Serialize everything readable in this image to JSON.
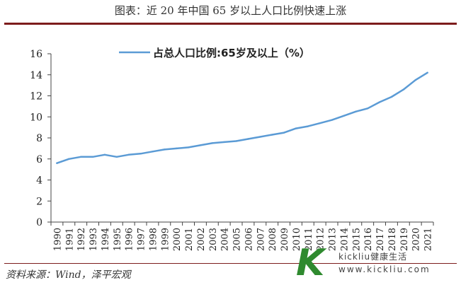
{
  "figure": {
    "title": "图表：近 20 年中国 65 岁以上人口比例快速上涨",
    "source": "资料来源：Wind，泽平宏观"
  },
  "watermark": {
    "logo_letter": "K",
    "brand_line": "kickliu健康生活",
    "url": "www.kickliu.com"
  },
  "colors": {
    "line": "#5b9bd5",
    "axis": "#444444",
    "title_rule": "#7d1c1c"
  },
  "chart_data": {
    "type": "line",
    "title": "",
    "xlabel": "",
    "ylabel": "",
    "ylim": [
      0,
      16
    ],
    "yticks": [
      "0",
      "2",
      "4",
      "6",
      "8",
      "10",
      "12",
      "14",
      "16"
    ],
    "grid": false,
    "legend_position": "top-center",
    "x": [
      "1990",
      "1991",
      "1992",
      "1993",
      "1994",
      "1995",
      "1996",
      "1997",
      "1998",
      "1999",
      "2000",
      "2001",
      "2002",
      "2003",
      "2004",
      "2005",
      "2006",
      "2007",
      "2008",
      "2009",
      "2010",
      "2011",
      "2012",
      "2013",
      "2014",
      "2015",
      "2016",
      "2017",
      "2018",
      "2019",
      "2020",
      "2021"
    ],
    "series": [
      {
        "name": "占总人口比例:65岁及以上（%）",
        "values": [
          5.6,
          6.0,
          6.2,
          6.2,
          6.4,
          6.2,
          6.4,
          6.5,
          6.7,
          6.9,
          7.0,
          7.1,
          7.3,
          7.5,
          7.6,
          7.7,
          7.9,
          8.1,
          8.3,
          8.5,
          8.9,
          9.1,
          9.4,
          9.7,
          10.1,
          10.5,
          10.8,
          11.4,
          11.9,
          12.6,
          13.5,
          14.2
        ]
      }
    ]
  }
}
